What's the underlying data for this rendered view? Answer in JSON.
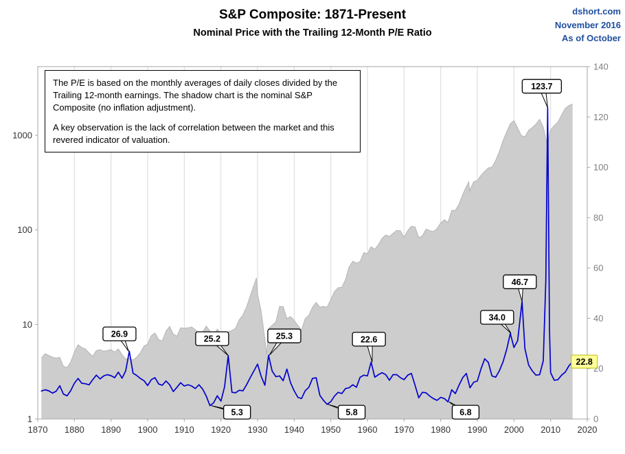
{
  "header": {
    "title": "S&P Composite: 1871-Present",
    "subtitle": "Nominal Price with the Trailing 12-Month P/E Ratio",
    "source": "dshort.com",
    "date": "November 2016",
    "asof": "As of October",
    "source_color": "#1f4e9f"
  },
  "note_box": {
    "para1": "The P/E is based on the monthly averages of daily closes divided by the Trailing 12-month earnings. The shadow chart is the nominal S&P Composite (no inflation adjustment).",
    "para2": "A key observation is the lack of correlation between the market and this revered indicator of valuation."
  },
  "chart_data": {
    "type": "line",
    "title": "S&P Composite: 1871-Present",
    "subtitle": "Nominal Price with the Trailing 12-Month P/E Ratio",
    "x_axis": {
      "min": 1870,
      "max": 2020,
      "tick_step": 10
    },
    "left_axis": {
      "scale": "log",
      "ticks": [
        1,
        10,
        100,
        1000
      ],
      "label_color": "#333333"
    },
    "right_axis": {
      "min": 0,
      "max": 140,
      "tick_step": 20,
      "label_color": "#7f7f7f"
    },
    "grid_color": "#d9d9d9",
    "border_color": "#a6a6a6",
    "series": [
      {
        "name": "S&P Composite nominal price (shadow chart)",
        "axis": "left",
        "style": "area",
        "fill": "#cdcdcd",
        "edge": "#b5b5b5",
        "x": [
          1871,
          1872,
          1873,
          1874,
          1875,
          1876,
          1877,
          1878,
          1879,
          1880,
          1881,
          1882,
          1883,
          1884,
          1885,
          1886,
          1887,
          1888,
          1889,
          1890,
          1891,
          1892,
          1893,
          1894,
          1895,
          1896,
          1897,
          1898,
          1899,
          1900,
          1901,
          1902,
          1903,
          1904,
          1905,
          1906,
          1907,
          1908,
          1909,
          1910,
          1911,
          1912,
          1913,
          1914,
          1915,
          1916,
          1917,
          1918,
          1919,
          1920,
          1921,
          1922,
          1923,
          1924,
          1925,
          1926,
          1927,
          1928,
          1929,
          1929.7,
          1930,
          1931,
          1932,
          1932.5,
          1933,
          1934,
          1935,
          1936,
          1937,
          1938,
          1939,
          1940,
          1941,
          1942,
          1943,
          1944,
          1945,
          1946,
          1947,
          1948,
          1949,
          1950,
          1951,
          1952,
          1953,
          1954,
          1955,
          1956,
          1957,
          1958,
          1959,
          1960,
          1961,
          1962,
          1963,
          1964,
          1965,
          1966,
          1967,
          1968,
          1969,
          1970,
          1971,
          1972,
          1973,
          1974,
          1975,
          1976,
          1977,
          1978,
          1979,
          1980,
          1981,
          1982,
          1983,
          1984,
          1985,
          1986,
          1987,
          1987.65,
          1987.95,
          1988,
          1989,
          1990,
          1991,
          1992,
          1993,
          1994,
          1995,
          1996,
          1997,
          1998,
          1999,
          2000,
          2001,
          2002,
          2003,
          2004,
          2005,
          2006,
          2007,
          2008,
          2009.2,
          2009.8,
          2010,
          2011,
          2012,
          2013,
          2014,
          2015,
          2016
        ],
        "values": [
          4.4,
          4.9,
          4.7,
          4.5,
          4.4,
          4.5,
          3.6,
          3.5,
          4.0,
          5.1,
          6.1,
          5.7,
          5.5,
          5.0,
          4.6,
          5.3,
          5.4,
          5.2,
          5.3,
          5.4,
          5.1,
          5.5,
          4.8,
          4.3,
          4.4,
          4.2,
          4.5,
          5.0,
          5.9,
          6.2,
          7.6,
          8.1,
          6.9,
          6.7,
          8.5,
          9.5,
          7.9,
          7.5,
          9.2,
          9.1,
          9.2,
          9.4,
          8.8,
          8.1,
          8.3,
          9.6,
          8.5,
          7.6,
          8.9,
          8.0,
          6.9,
          8.4,
          8.6,
          9.1,
          11.2,
          12.6,
          15.3,
          19.9,
          26.0,
          31.0,
          21.0,
          13.7,
          6.9,
          4.8,
          9.0,
          9.8,
          10.6,
          15.5,
          15.4,
          11.5,
          12.1,
          11.0,
          9.8,
          8.7,
          11.5,
          12.5,
          15.2,
          17.1,
          15.2,
          15.5,
          15.2,
          18.4,
          22.3,
          24.5,
          24.7,
          29.7,
          40.5,
          46.6,
          44.4,
          46.2,
          57.4,
          55.8,
          66.3,
          62.4,
          69.9,
          81.4,
          88.2,
          85.3,
          91.9,
          98.7,
          97.8,
          83.2,
          98.3,
          109.2,
          107.4,
          82.9,
          86.2,
          102.0,
          98.2,
          96.0,
          103.0,
          118.8,
          128.0,
          119.7,
          160.4,
          160.5,
          186.8,
          236.3,
          286.8,
          321.0,
          247.0,
          265.8,
          322.8,
          334.6,
          376.2,
          415.7,
          451.6,
          460.4,
          541.7,
          670.5,
          873.4,
          1085.5,
          1327.3,
          1427.2,
          1194.2,
          993.9,
          965.2,
          1130.6,
          1207.2,
          1310.5,
          1477.2,
          1220.0,
          757.0,
          1088.0,
          1139.0,
          1267.6,
          1379.6,
          1643.8,
          1930.7,
          2061.1,
          2143.0
        ]
      },
      {
        "name": "Trailing 12-month P/E ratio",
        "axis": "right",
        "style": "line",
        "color": "#0000cc",
        "x": [
          1871,
          1872,
          1873,
          1874,
          1875,
          1876,
          1877,
          1878,
          1879,
          1880,
          1881,
          1882,
          1883,
          1884,
          1885,
          1886,
          1887,
          1888,
          1889,
          1890,
          1891,
          1892,
          1893,
          1894,
          1895,
          1896,
          1897,
          1898,
          1899,
          1900,
          1901,
          1902,
          1903,
          1904,
          1905,
          1906,
          1907,
          1908,
          1909,
          1910,
          1911,
          1912,
          1913,
          1914,
          1915,
          1916,
          1917,
          1918,
          1919,
          1920,
          1921,
          1922,
          1923,
          1924,
          1925,
          1926,
          1927,
          1928,
          1929,
          1930,
          1931,
          1932,
          1933,
          1934,
          1935,
          1936,
          1937,
          1938,
          1939,
          1940,
          1941,
          1942,
          1943,
          1944,
          1945,
          1946,
          1947,
          1948,
          1949,
          1950,
          1951,
          1952,
          1953,
          1954,
          1955,
          1956,
          1957,
          1958,
          1959,
          1960,
          1961,
          1962,
          1963,
          1964,
          1965,
          1966,
          1967,
          1968,
          1969,
          1970,
          1971,
          1972,
          1973,
          1974,
          1975,
          1976,
          1977,
          1978,
          1979,
          1980,
          1981,
          1982,
          1983,
          1984,
          1985,
          1986,
          1987,
          1988,
          1989,
          1990,
          1991,
          1992,
          1993,
          1994,
          1995,
          1996,
          1997,
          1998,
          1999,
          2000,
          2001,
          2002.2,
          2003,
          2004,
          2005,
          2006,
          2007,
          2008,
          2008.7,
          2009.2,
          2009.7,
          2010,
          2011,
          2012,
          2013,
          2014,
          2015,
          2016
        ],
        "values": [
          11.1,
          11.6,
          11.2,
          10.3,
          11.0,
          13.2,
          9.9,
          9.2,
          11.3,
          14.2,
          16.1,
          14.2,
          14.0,
          13.6,
          15.6,
          17.4,
          15.9,
          17.1,
          17.6,
          17.2,
          16.4,
          18.6,
          16.2,
          19.1,
          26.9,
          18.2,
          17.3,
          16.1,
          15.2,
          13.3,
          15.6,
          16.4,
          13.9,
          13.4,
          15.1,
          13.6,
          10.9,
          12.6,
          14.4,
          13.1,
          13.6,
          13.1,
          12.1,
          13.6,
          11.9,
          9.1,
          5.3,
          6.4,
          9.2,
          7.1,
          12.8,
          25.2,
          10.6,
          10.4,
          11.4,
          11.2,
          13.6,
          16.4,
          19.1,
          21.8,
          16.9,
          13.4,
          25.3,
          19.0,
          16.8,
          17.1,
          15.2,
          19.8,
          14.4,
          11.2,
          8.6,
          8.1,
          11.2,
          12.6,
          16.1,
          16.4,
          9.4,
          7.4,
          5.8,
          6.9,
          9.1,
          10.6,
          10.1,
          12.1,
          12.4,
          13.6,
          12.6,
          16.6,
          17.4,
          17.1,
          22.6,
          16.6,
          17.6,
          18.4,
          17.6,
          15.4,
          17.6,
          17.6,
          16.4,
          15.6,
          17.4,
          18.1,
          13.4,
          8.4,
          10.6,
          10.4,
          9.1,
          8.1,
          7.4,
          8.6,
          8.1,
          6.8,
          11.6,
          10.1,
          13.4,
          16.4,
          18.1,
          12.4,
          14.6,
          15.1,
          19.9,
          23.9,
          22.5,
          17.1,
          16.6,
          19.1,
          22.6,
          27.6,
          34.0,
          28.4,
          31.1,
          46.7,
          27.9,
          21.4,
          19.1,
          17.4,
          17.6,
          23.1,
          55.0,
          123.7,
          35.0,
          18.4,
          15.4,
          15.6,
          17.4,
          18.6,
          21.1,
          22.8
        ]
      }
    ],
    "annotations": [
      {
        "label": "26.9",
        "anchor_year": 1894.8,
        "anchor_value": 26.9,
        "box_year": 1892.3,
        "box_value": 33.8
      },
      {
        "label": "25.2",
        "anchor_year": 1922.0,
        "anchor_value": 25.2,
        "box_year": 1917.6,
        "box_value": 31.9
      },
      {
        "label": "25.3",
        "anchor_year": 1933.2,
        "anchor_value": 25.3,
        "box_year": 1937.3,
        "box_value": 33.0
      },
      {
        "label": "22.6",
        "anchor_year": 1961.3,
        "anchor_value": 22.6,
        "box_year": 1960.4,
        "box_value": 31.7
      },
      {
        "label": "5.3",
        "anchor_year": 1917.4,
        "anchor_value": 5.3,
        "box_year": 1924.4,
        "box_value": 2.7
      },
      {
        "label": "5.8",
        "anchor_year": 1949.2,
        "anchor_value": 5.8,
        "box_year": 1955.7,
        "box_value": 2.7
      },
      {
        "label": "6.8",
        "anchor_year": 1982.3,
        "anchor_value": 6.8,
        "box_year": 1986.8,
        "box_value": 2.7
      },
      {
        "label": "34.0",
        "anchor_year": 1999.2,
        "anchor_value": 34.0,
        "box_year": 1995.4,
        "box_value": 40.4
      },
      {
        "label": "46.7",
        "anchor_year": 2002.2,
        "anchor_value": 46.7,
        "box_year": 2001.6,
        "box_value": 54.5
      },
      {
        "label": "123.7",
        "anchor_year": 2009.2,
        "anchor_value": 123.7,
        "box_year": 2007.6,
        "box_value": 132.2
      }
    ],
    "current": {
      "label": "22.8",
      "year": 2019.2,
      "value": 22.8,
      "fill": "#ffff9c",
      "stroke": "#b9b900"
    }
  }
}
